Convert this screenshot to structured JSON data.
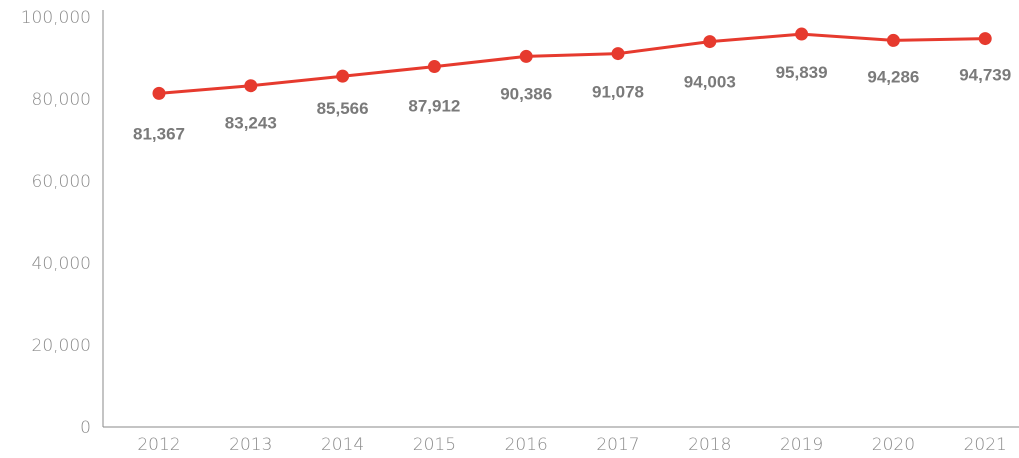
{
  "chart_data": {
    "type": "line",
    "title": "",
    "xlabel": "",
    "ylabel": "",
    "categories": [
      "2012",
      "2013",
      "2014",
      "2015",
      "2016",
      "2017",
      "2018",
      "2019",
      "2020",
      "2021"
    ],
    "series": [
      {
        "values": [
          81367,
          83243,
          85566,
          87912,
          90386,
          91078,
          94003,
          95839,
          94286,
          94739
        ],
        "data_labels": [
          "81,367",
          "83,243",
          "85,566",
          "87,912",
          "90,386",
          "91,078",
          "94,003",
          "95,839",
          "94,286",
          "94,739"
        ],
        "color": "#e63a2e"
      }
    ],
    "ylim": [
      0,
      100000
    ],
    "yticks": [
      0,
      20000,
      40000,
      60000,
      80000,
      100000
    ],
    "ytick_labels": [
      "0",
      "20,000",
      "40,000",
      "60,000",
      "80,000",
      "100,000"
    ],
    "grid": false,
    "legend": "none"
  },
  "colors": {
    "line": "#e63a2e",
    "axis": "#8a8a8a",
    "data_label": "#7a7a7a"
  }
}
